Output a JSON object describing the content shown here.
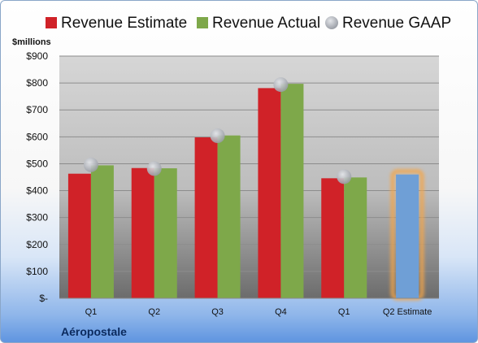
{
  "chart_data": {
    "type": "bar",
    "unit_label": "$millions",
    "company": "Aéropostale",
    "categories": [
      "Q1",
      "Q2",
      "Q3",
      "Q4",
      "Q1",
      "Q2 Estimate"
    ],
    "series": [
      {
        "name": "Revenue Estimate",
        "color": "#d02228",
        "values": [
          463,
          484,
          598,
          781,
          446,
          null
        ]
      },
      {
        "name": "Revenue Actual",
        "color": "#7ea84a",
        "values": [
          494,
          483,
          605,
          797,
          449,
          null
        ]
      },
      {
        "name": "Revenue GAAP",
        "color": "#b7bac2",
        "type": "scatter",
        "values": [
          496,
          482,
          604,
          794,
          452,
          null
        ]
      },
      {
        "name": "",
        "color": "#6f9fd6",
        "highlight": true,
        "values": [
          null,
          null,
          null,
          null,
          null,
          460
        ]
      }
    ],
    "ylim": [
      0,
      900
    ],
    "y_ticks": [
      {
        "value": 0,
        "label": "$-"
      },
      {
        "value": 100,
        "label": "$100"
      },
      {
        "value": 200,
        "label": "$200"
      },
      {
        "value": 300,
        "label": "$300"
      },
      {
        "value": 400,
        "label": "$400"
      },
      {
        "value": 500,
        "label": "$500"
      },
      {
        "value": 600,
        "label": "$600"
      },
      {
        "value": 700,
        "label": "$700"
      },
      {
        "value": 800,
        "label": "$800"
      },
      {
        "value": 900,
        "label": "$900"
      }
    ],
    "grid": true,
    "legend_position": "top"
  }
}
